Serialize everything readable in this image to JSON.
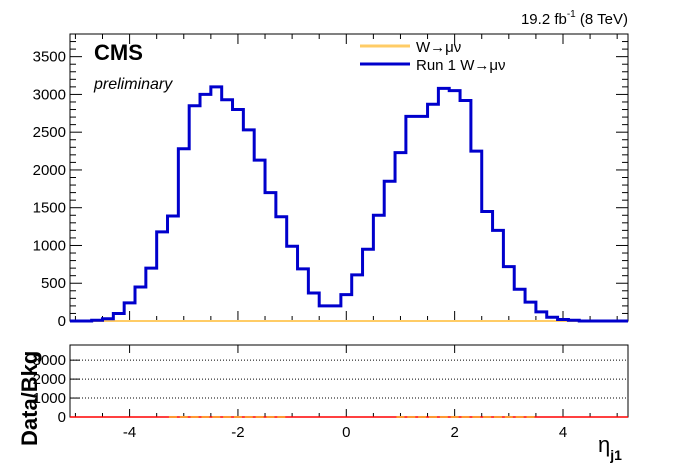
{
  "header": {
    "lumi_prefix": "19.2 fb",
    "lumi_exponent": "-1",
    "lumi_suffix": " (8 TeV)"
  },
  "labels": {
    "experiment": "CMS",
    "status": "preliminary"
  },
  "chart_data": [
    {
      "type": "line",
      "panel": "main",
      "x_ticks": [
        -4,
        -2,
        0,
        2,
        4
      ],
      "y_ticks": [
        0,
        500,
        1000,
        1500,
        2000,
        2500,
        3000,
        3500
      ],
      "xlim": [
        -5.1,
        5.2
      ],
      "ylim": [
        0,
        3800
      ],
      "bin_edges": [
        -5.1,
        -4.9,
        -4.7,
        -4.5,
        -4.3,
        -4.1,
        -3.9,
        -3.7,
        -3.5,
        -3.3,
        -3.1,
        -2.9,
        -2.7,
        -2.5,
        -2.3,
        -2.1,
        -1.9,
        -1.7,
        -1.5,
        -1.3,
        -1.1,
        -0.9,
        -0.7,
        -0.5,
        -0.3,
        -0.1,
        0.1,
        0.3,
        0.5,
        0.7,
        0.9,
        1.1,
        1.3,
        1.5,
        1.7,
        1.9,
        2.1,
        2.3,
        2.5,
        2.7,
        2.9,
        3.1,
        3.3,
        3.5,
        3.7,
        3.9,
        4.1,
        4.3,
        4.5,
        4.7,
        4.9,
        5.2
      ],
      "series": [
        {
          "name": "W→μν",
          "color": "#ffcc66",
          "values": [
            0,
            0,
            0,
            0,
            0,
            0,
            0,
            0,
            0,
            0,
            0,
            0,
            0,
            0,
            0,
            0,
            0,
            0,
            0,
            0,
            0,
            0,
            0,
            0,
            0,
            0,
            0,
            0,
            0,
            0,
            0,
            0,
            0,
            0,
            0,
            0,
            0,
            0,
            0,
            0,
            0,
            0,
            0,
            0,
            0,
            0,
            0,
            0,
            0,
            0,
            0
          ]
        },
        {
          "name": "Run 1 W→μν",
          "color": "#0000cc",
          "values": [
            0,
            0,
            10,
            30,
            100,
            240,
            450,
            700,
            1180,
            1390,
            2280,
            2850,
            3000,
            3100,
            2930,
            2800,
            2530,
            2130,
            1700,
            1380,
            990,
            690,
            370,
            200,
            200,
            350,
            610,
            950,
            1400,
            1850,
            2230,
            2710,
            2710,
            2870,
            3080,
            3050,
            2920,
            2250,
            1450,
            1200,
            720,
            420,
            250,
            120,
            50,
            20,
            10,
            0,
            0,
            0,
            0
          ]
        }
      ]
    },
    {
      "type": "scatter",
      "panel": "ratio",
      "ylabel": "Data/Bkg",
      "xlabel": "η",
      "xlabel_subscript": "j1",
      "x_ticks": [
        -4,
        -2,
        0,
        2,
        4
      ],
      "y_ticks": [
        0,
        1000,
        2000,
        3000
      ],
      "xlim": [
        -5.1,
        5.2
      ],
      "ylim": [
        0,
        3800
      ],
      "gridlines": [
        1000,
        2000,
        3000
      ],
      "reference_line": 1,
      "reference_color": "#ff0000",
      "points_color": "#ff9933",
      "points_x": [
        -3.2,
        -3.0,
        -2.8,
        -2.6,
        -2.4,
        -2.2,
        -2.0,
        -1.8,
        -1.6,
        -1.4,
        -1.2,
        1.0,
        1.2,
        1.4,
        1.6,
        1.8,
        2.0,
        2.2,
        2.4,
        2.6,
        2.8,
        3.0,
        3.2,
        3.4
      ],
      "points_y": [
        1,
        1,
        1,
        1,
        1,
        1,
        1,
        1,
        1,
        1,
        1,
        1,
        1,
        1,
        1,
        1,
        1,
        1,
        1,
        1,
        1,
        1,
        1,
        1
      ]
    }
  ]
}
